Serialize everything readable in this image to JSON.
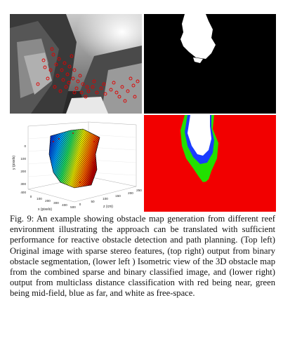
{
  "figure": {
    "caption": "Fig. 9: An example showing obstacle map generation from different reef environment illustrating the approach can be translated with sufficient performance for reactive obstacle detection and path planning. (Top left) Original image with sparse stereo features, (top right) output from binary obstacle segmentation, (lower left ) Isometric view of the 3D obstacle map from the combined sparse and binary classified image, and (lower right) output from multiclass distance classification with red being near, green being mid-field, blue as far, and white as free-space."
  },
  "plot3d": {
    "y_label": "y (pixels)",
    "x_label": "x (pixels)",
    "z_label": "z (cm)",
    "y_ticks": [
      "0",
      "100",
      "200",
      "300",
      "400"
    ],
    "x_ticks": [
      "0",
      "100",
      "200",
      "300",
      "400",
      "500"
    ],
    "z_ticks": [
      "0",
      "50",
      "100",
      "150",
      "200",
      "250"
    ]
  },
  "colors": {
    "near": "#f20000",
    "mid": "#22e000",
    "far": "#1a3cff",
    "free": "#ffffff",
    "feature": "#e00000"
  }
}
